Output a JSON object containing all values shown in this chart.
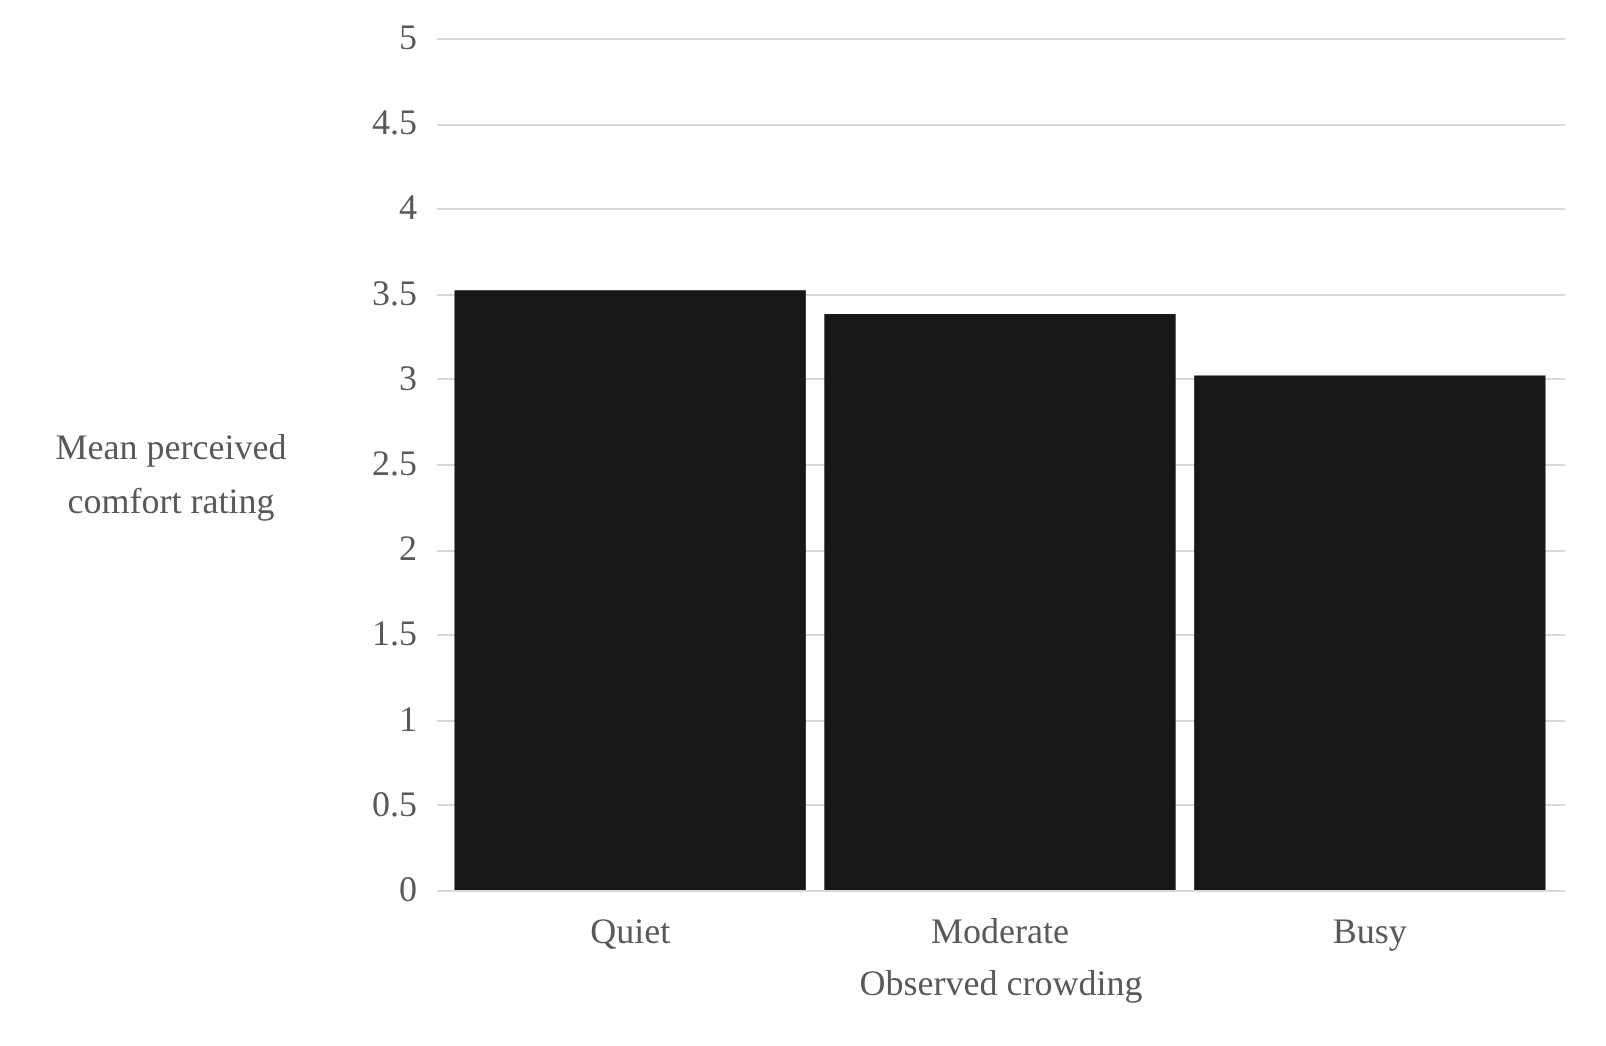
{
  "chart_data": {
    "type": "bar",
    "xlabel": "Observed crowding",
    "ylabel": "Mean perceived comfort rating",
    "categories": [
      "Quiet",
      "Moderate",
      "Busy"
    ],
    "values": [
      3.52,
      3.38,
      3.02
    ],
    "color": "#171717",
    "ylim": [
      0,
      5
    ],
    "yticks": [
      0,
      0.5,
      1,
      1.5,
      2,
      2.5,
      3,
      3.5,
      4,
      4.5,
      5
    ],
    "grid": "y"
  }
}
